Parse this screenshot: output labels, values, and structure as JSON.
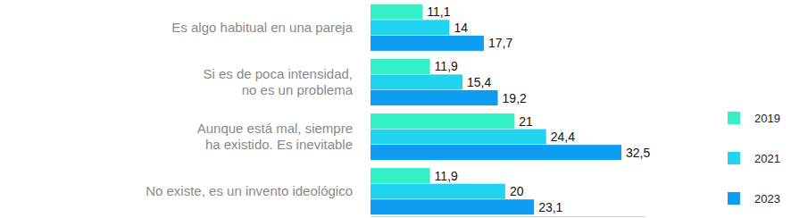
{
  "chart_data": {
    "type": "bar",
    "orientation": "horizontal",
    "categories": [
      "Es algo habitual en una pareja",
      "Si es de poca intensidad, no es un problema",
      "Aunque está mal, siempre ha existido. Es inevitable",
      "No existe, es un invento ideológico"
    ],
    "series": [
      {
        "name": "2019",
        "color": "#33f0c6",
        "values": [
          11.1,
          11.9,
          21,
          11.9
        ],
        "value_labels": [
          "11,1",
          "11,9",
          "21",
          "11,9"
        ]
      },
      {
        "name": "2021",
        "color": "#22d3ef",
        "values": [
          14,
          15.4,
          24.4,
          20
        ],
        "value_labels": [
          "14",
          "15,4",
          "24,4",
          "20"
        ]
      },
      {
        "name": "2023",
        "color": "#0e9df3",
        "values": [
          17.7,
          19.2,
          32.5,
          23.1
        ],
        "value_labels": [
          "17,7",
          "19,2",
          "32,5",
          "23,1"
        ]
      }
    ],
    "xlim": [
      5.5,
      35
    ],
    "data_labels": true,
    "tick_labels": "y",
    "legend": "right",
    "grid": false
  }
}
